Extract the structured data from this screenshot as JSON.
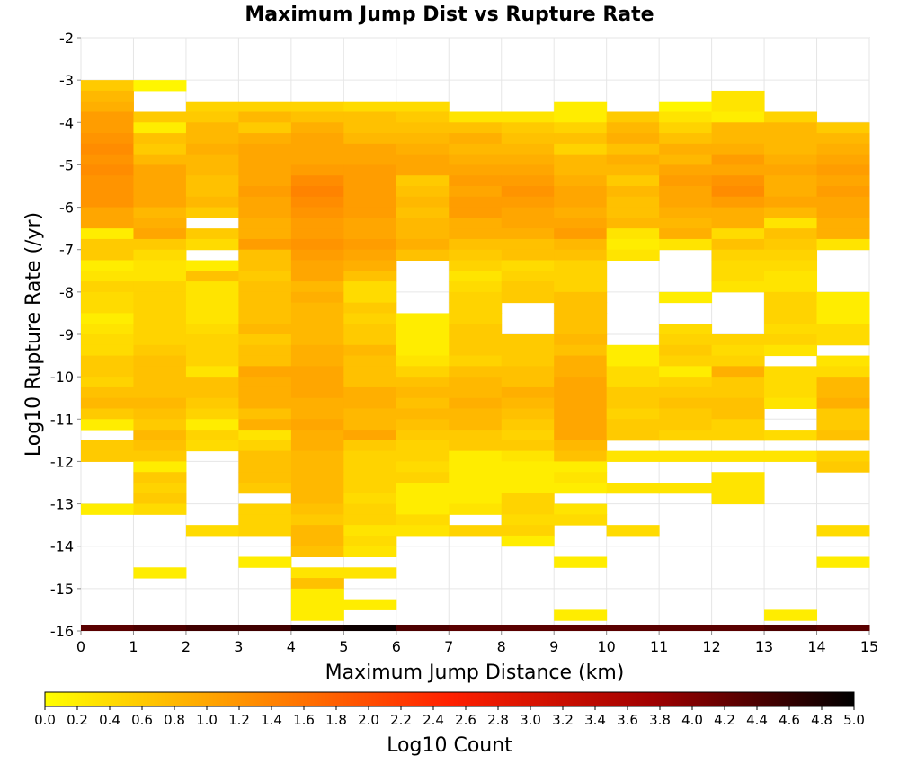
{
  "chart_data": {
    "type": "heatmap",
    "title": "Maximum Jump Dist vs Rupture Rate",
    "xlabel": "Maximum Jump Distance (km)",
    "ylabel": "Log10 Rupture Rate (/yr)",
    "xlim": [
      0,
      15
    ],
    "ylim": [
      -16,
      -2
    ],
    "x_ticks": [
      "0",
      "1",
      "2",
      "3",
      "4",
      "5",
      "6",
      "7",
      "8",
      "9",
      "10",
      "11",
      "12",
      "13",
      "14",
      "15"
    ],
    "y_ticks": [
      "-2",
      "-3",
      "-4",
      "-5",
      "-6",
      "-7",
      "-8",
      "-9",
      "-10",
      "-11",
      "-12",
      "-13",
      "-14",
      "-15",
      "-16"
    ],
    "x_bins": [
      0,
      1,
      2,
      3,
      4,
      5,
      6,
      7,
      8,
      9,
      10,
      11,
      12,
      13,
      14
    ],
    "y_bin_start": -3.0,
    "y_bin_size": 0.25,
    "grid": true,
    "colorscale": {
      "label": "Log10 Count",
      "range": [
        0,
        5
      ],
      "ticks": [
        "0.0",
        "0.2",
        "0.4",
        "0.6",
        "0.8",
        "1.0",
        "1.2",
        "1.4",
        "1.6",
        "1.8",
        "2.0",
        "2.2",
        "2.4",
        "2.6",
        "2.8",
        "3.0",
        "3.2",
        "3.4",
        "3.6",
        "3.8",
        "4.0",
        "4.2",
        "4.4",
        "4.6",
        "4.8",
        "5.0"
      ],
      "colors": [
        "#ffff00",
        "#ff9000",
        "#ff2000",
        "#a00000",
        "#000000"
      ]
    },
    "bottom_row": {
      "y": -16,
      "values": [
        4.3,
        4.4,
        4.5,
        4.5,
        4.8,
        4.9,
        4.4,
        4.3,
        4.3,
        4.3,
        4.3,
        4.3,
        4.3,
        4.4,
        4.3
      ]
    },
    "values": [
      [
        0.6,
        0.1,
        null,
        null,
        null,
        null,
        null,
        null,
        null,
        null,
        null,
        null,
        null,
        null,
        null
      ],
      [
        0.8,
        null,
        null,
        null,
        null,
        null,
        null,
        null,
        null,
        null,
        null,
        null,
        0.3,
        null,
        null
      ],
      [
        0.9,
        null,
        0.5,
        0.5,
        0.5,
        0.4,
        0.4,
        null,
        null,
        0.2,
        null,
        0.1,
        0.3,
        null,
        null
      ],
      [
        1.1,
        0.6,
        0.6,
        0.8,
        0.7,
        0.7,
        0.6,
        0.3,
        0.3,
        0.2,
        0.6,
        0.3,
        0.2,
        0.5,
        null
      ],
      [
        1.1,
        0.2,
        0.8,
        0.6,
        0.9,
        0.7,
        0.7,
        0.7,
        0.6,
        0.5,
        0.8,
        0.5,
        0.8,
        0.8,
        0.6
      ],
      [
        1.2,
        0.7,
        0.8,
        0.9,
        1.0,
        0.8,
        0.8,
        0.9,
        0.7,
        0.7,
        0.9,
        0.7,
        0.8,
        0.8,
        0.8
      ],
      [
        1.3,
        0.6,
        0.9,
        1.0,
        1.0,
        1.0,
        0.9,
        0.8,
        0.8,
        0.5,
        0.7,
        0.9,
        0.9,
        0.8,
        0.9
      ],
      [
        1.2,
        0.8,
        0.8,
        1.0,
        1.0,
        1.0,
        1.0,
        0.9,
        0.9,
        0.8,
        0.9,
        0.8,
        1.1,
        0.9,
        1.0
      ],
      [
        1.3,
        1.0,
        0.8,
        1.0,
        1.1,
        1.1,
        1.0,
        1.0,
        1.0,
        0.8,
        0.8,
        1.0,
        1.0,
        1.0,
        1.1
      ],
      [
        1.2,
        1.0,
        0.7,
        1.0,
        1.3,
        1.1,
        0.6,
        1.1,
        1.1,
        0.9,
        0.6,
        1.1,
        1.2,
        0.9,
        1.0
      ],
      [
        1.2,
        1.0,
        0.7,
        1.1,
        1.4,
        1.1,
        0.7,
        1.0,
        1.2,
        1.0,
        0.8,
        1.0,
        1.3,
        0.9,
        1.1
      ],
      [
        1.2,
        1.0,
        0.8,
        1.0,
        1.3,
        1.1,
        0.8,
        1.1,
        1.1,
        1.0,
        0.7,
        1.0,
        1.1,
        1.0,
        1.0
      ],
      [
        1.0,
        0.8,
        0.6,
        1.0,
        1.2,
        1.1,
        0.7,
        1.1,
        1.0,
        0.9,
        0.7,
        0.9,
        0.9,
        0.8,
        1.0
      ],
      [
        1.0,
        0.9,
        null,
        0.9,
        1.1,
        1.0,
        0.8,
        0.9,
        1.0,
        1.0,
        0.8,
        0.8,
        0.9,
        0.3,
        0.9
      ],
      [
        0.2,
        1.0,
        0.6,
        0.9,
        1.1,
        1.0,
        0.8,
        0.9,
        0.9,
        1.1,
        0.3,
        0.9,
        0.4,
        0.7,
        0.9
      ],
      [
        0.6,
        0.6,
        0.4,
        1.1,
        1.2,
        1.1,
        0.9,
        0.7,
        0.7,
        0.8,
        0.2,
        0.3,
        0.7,
        0.6,
        0.3
      ],
      [
        0.6,
        0.4,
        null,
        0.7,
        1.1,
        1.0,
        0.7,
        0.6,
        0.7,
        0.7,
        0.3,
        null,
        0.5,
        0.5,
        null
      ],
      [
        0.2,
        0.3,
        0.2,
        0.7,
        1.0,
        0.9,
        null,
        0.5,
        0.4,
        0.5,
        null,
        null,
        0.4,
        0.4,
        null
      ],
      [
        0.3,
        0.3,
        0.7,
        0.6,
        1.0,
        0.7,
        null,
        0.3,
        0.5,
        0.5,
        null,
        null,
        0.4,
        0.3,
        null
      ],
      [
        0.5,
        0.5,
        0.3,
        0.7,
        0.8,
        0.4,
        null,
        0.4,
        0.6,
        0.5,
        null,
        null,
        0.3,
        0.3,
        null
      ],
      [
        0.4,
        0.5,
        0.3,
        0.7,
        0.9,
        0.4,
        null,
        0.5,
        0.6,
        0.7,
        null,
        0.2,
        null,
        0.5,
        0.2
      ],
      [
        0.4,
        0.5,
        0.3,
        0.7,
        0.8,
        0.6,
        null,
        0.5,
        null,
        0.7,
        null,
        null,
        null,
        0.5,
        0.2
      ],
      [
        0.2,
        0.5,
        0.3,
        0.7,
        0.8,
        0.5,
        0.2,
        0.5,
        null,
        0.7,
        null,
        null,
        null,
        0.5,
        0.2
      ],
      [
        0.3,
        0.5,
        0.4,
        0.8,
        0.8,
        0.6,
        0.2,
        0.6,
        null,
        0.7,
        null,
        0.4,
        null,
        0.4,
        0.4
      ],
      [
        0.4,
        0.5,
        0.5,
        0.6,
        0.8,
        0.6,
        0.2,
        0.6,
        0.6,
        0.8,
        null,
        0.5,
        0.5,
        0.5,
        0.4
      ],
      [
        0.4,
        0.6,
        0.5,
        0.7,
        0.9,
        0.8,
        0.2,
        0.6,
        0.6,
        0.7,
        0.2,
        0.6,
        0.4,
        0.3,
        null
      ],
      [
        0.6,
        0.7,
        0.5,
        0.7,
        0.9,
        0.7,
        0.3,
        0.5,
        0.6,
        0.9,
        0.2,
        0.5,
        0.5,
        null,
        0.3
      ],
      [
        0.6,
        0.7,
        0.3,
        1.0,
        1.0,
        0.7,
        0.5,
        0.7,
        0.7,
        0.9,
        0.4,
        0.2,
        0.9,
        0.4,
        0.4
      ],
      [
        0.5,
        0.7,
        0.7,
        0.9,
        1.0,
        0.7,
        0.7,
        0.8,
        0.7,
        1.0,
        0.4,
        0.5,
        0.6,
        0.4,
        0.8
      ],
      [
        0.7,
        0.7,
        0.7,
        0.9,
        1.0,
        0.9,
        0.8,
        0.8,
        0.9,
        1.0,
        0.6,
        0.6,
        0.6,
        0.4,
        0.8
      ],
      [
        0.8,
        0.8,
        0.6,
        0.9,
        0.9,
        0.9,
        0.7,
        0.9,
        0.8,
        1.0,
        0.6,
        0.7,
        0.7,
        0.3,
        0.9
      ],
      [
        0.6,
        0.7,
        0.5,
        0.7,
        0.9,
        0.8,
        0.8,
        0.8,
        0.7,
        1.0,
        0.5,
        0.6,
        0.7,
        null,
        0.6
      ],
      [
        0.2,
        0.6,
        0.2,
        0.9,
        1.0,
        0.8,
        0.7,
        0.8,
        0.6,
        1.0,
        0.6,
        0.6,
        0.5,
        null,
        0.6
      ],
      [
        null,
        0.8,
        0.5,
        0.3,
        0.9,
        1.0,
        0.6,
        0.6,
        0.5,
        1.0,
        0.6,
        0.5,
        0.5,
        0.4,
        0.7
      ],
      [
        0.6,
        0.7,
        0.4,
        0.5,
        0.9,
        0.6,
        0.5,
        0.6,
        0.6,
        0.8,
        null,
        null,
        null,
        null,
        null
      ],
      [
        0.6,
        0.6,
        null,
        0.7,
        0.8,
        0.5,
        0.5,
        0.2,
        0.3,
        0.7,
        0.3,
        0.3,
        0.3,
        0.3,
        0.5
      ],
      [
        null,
        0.2,
        null,
        0.7,
        0.8,
        0.5,
        0.4,
        0.2,
        0.2,
        0.2,
        null,
        null,
        null,
        null,
        0.6
      ],
      [
        null,
        0.6,
        null,
        0.7,
        0.8,
        0.5,
        0.5,
        0.2,
        0.2,
        0.3,
        null,
        null,
        0.3,
        null,
        null
      ],
      [
        null,
        0.5,
        null,
        0.6,
        0.8,
        0.5,
        0.2,
        0.2,
        0.2,
        0.2,
        0.3,
        0.3,
        0.3,
        null,
        null
      ],
      [
        null,
        0.6,
        null,
        null,
        0.8,
        0.4,
        0.2,
        0.2,
        0.5,
        null,
        null,
        null,
        0.3,
        null,
        null
      ],
      [
        0.2,
        0.4,
        null,
        0.5,
        0.7,
        0.5,
        0.2,
        0.3,
        0.5,
        0.3,
        null,
        null,
        null,
        null,
        null
      ],
      [
        null,
        null,
        null,
        0.5,
        0.6,
        0.5,
        0.4,
        null,
        0.4,
        0.4,
        null,
        null,
        null,
        null,
        null
      ],
      [
        null,
        null,
        0.4,
        0.5,
        0.8,
        0.3,
        0.3,
        0.5,
        0.5,
        null,
        0.4,
        null,
        null,
        null,
        0.4
      ],
      [
        null,
        null,
        null,
        null,
        0.8,
        0.4,
        null,
        null,
        0.2,
        null,
        null,
        null,
        null,
        null,
        null
      ],
      [
        null,
        null,
        null,
        null,
        0.7,
        0.3,
        null,
        null,
        null,
        null,
        null,
        null,
        null,
        null,
        null
      ],
      [
        null,
        null,
        null,
        0.2,
        null,
        null,
        null,
        null,
        null,
        0.2,
        null,
        null,
        null,
        null,
        0.2
      ],
      [
        null,
        0.2,
        null,
        null,
        0.3,
        0.3,
        null,
        null,
        null,
        null,
        null,
        null,
        null,
        null,
        null
      ],
      [
        null,
        null,
        null,
        null,
        0.7,
        null,
        null,
        null,
        null,
        null,
        null,
        null,
        null,
        null,
        null
      ],
      [
        null,
        null,
        null,
        null,
        0.2,
        null,
        null,
        null,
        null,
        null,
        null,
        null,
        null,
        null,
        null
      ],
      [
        null,
        null,
        null,
        null,
        0.2,
        0.2,
        null,
        null,
        null,
        null,
        null,
        null,
        null,
        null,
        null
      ],
      [
        null,
        null,
        null,
        null,
        0.2,
        null,
        null,
        null,
        null,
        0.2,
        null,
        null,
        null,
        0.2,
        null
      ]
    ]
  }
}
